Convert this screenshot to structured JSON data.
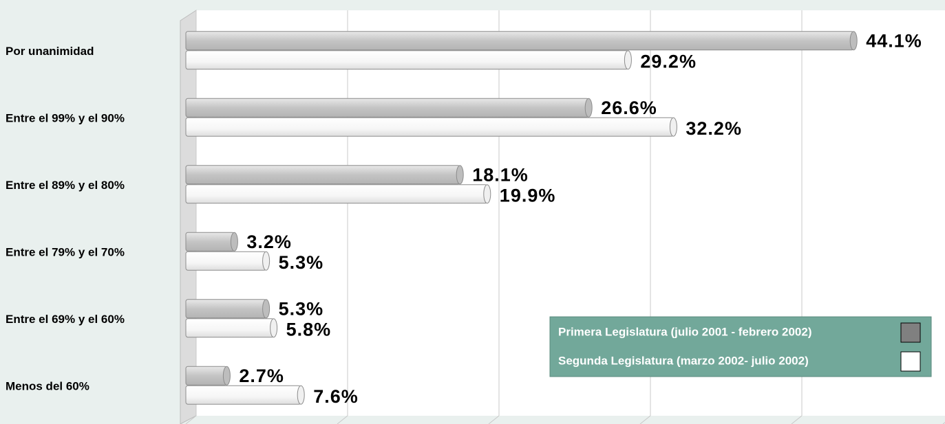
{
  "chart_data": {
    "type": "hbar",
    "categories": [
      "Por unanimidad",
      "Entre el 99% y el 90%",
      "Entre el 89% y el 80%",
      "Entre el 79% y el 70%",
      "Entre el 69% y el 60%",
      "Menos del 60%"
    ],
    "series": [
      {
        "name": "Primera Legislatura (julio 2001 - febrero 2002)",
        "color": "#808080",
        "values": [
          44.1,
          26.6,
          18.1,
          3.2,
          5.3,
          2.7
        ],
        "value_labels": [
          "44.1%",
          "26.6%",
          "18.1%",
          "3.2%",
          "5.3%",
          "2.7%"
        ]
      },
      {
        "name": "Segunda Legislatura (marzo 2002- julio 2002)",
        "color": "#ffffff",
        "values": [
          29.2,
          32.2,
          19.9,
          5.3,
          5.8,
          7.6
        ],
        "value_labels": [
          "29.2%",
          "32.2%",
          "19.9%",
          "5.3%",
          "5.8%",
          "7.6%"
        ]
      }
    ],
    "xlim": [
      0,
      50
    ],
    "xticks": [
      0,
      10,
      20,
      30,
      40,
      50
    ],
    "grid": true,
    "legend": "bottom-right"
  }
}
